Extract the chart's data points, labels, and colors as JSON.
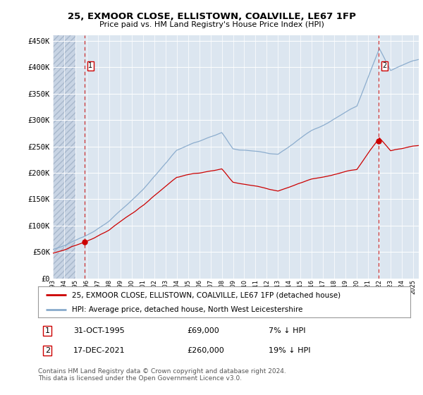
{
  "title_line1": "25, EXMOOR CLOSE, ELLISTOWN, COALVILLE, LE67 1FP",
  "title_line2": "Price paid vs. HM Land Registry's House Price Index (HPI)",
  "ylabel_ticks": [
    "£0",
    "£50K",
    "£100K",
    "£150K",
    "£200K",
    "£250K",
    "£300K",
    "£350K",
    "£400K",
    "£450K"
  ],
  "ytick_values": [
    0,
    50000,
    100000,
    150000,
    200000,
    250000,
    300000,
    350000,
    400000,
    450000
  ],
  "ylim": [
    0,
    460000
  ],
  "xlim_start": 1993.0,
  "xlim_end": 2025.5,
  "purchase1_x": 1995.833,
  "purchase1_y": 69000,
  "purchase2_x": 2021.958,
  "purchase2_y": 260000,
  "legend_label1": "25, EXMOOR CLOSE, ELLISTOWN, COALVILLE, LE67 1FP (detached house)",
  "legend_label2": "HPI: Average price, detached house, North West Leicestershire",
  "note1_label": "1",
  "note1_date": "31-OCT-1995",
  "note1_price": "£69,000",
  "note1_hpi": "7% ↓ HPI",
  "note2_label": "2",
  "note2_date": "17-DEC-2021",
  "note2_price": "£260,000",
  "note2_hpi": "19% ↓ HPI",
  "footer": "Contains HM Land Registry data © Crown copyright and database right 2024.\nThis data is licensed under the Open Government Licence v3.0.",
  "line_color_sold": "#cc0000",
  "line_color_hpi": "#88aacc",
  "plot_bg_color": "#dce6f0",
  "hatch_bg_color": "#c8d4e4",
  "fig_bg_color": "#ffffff",
  "grid_color": "#ffffff",
  "vline_color": "#cc3333"
}
